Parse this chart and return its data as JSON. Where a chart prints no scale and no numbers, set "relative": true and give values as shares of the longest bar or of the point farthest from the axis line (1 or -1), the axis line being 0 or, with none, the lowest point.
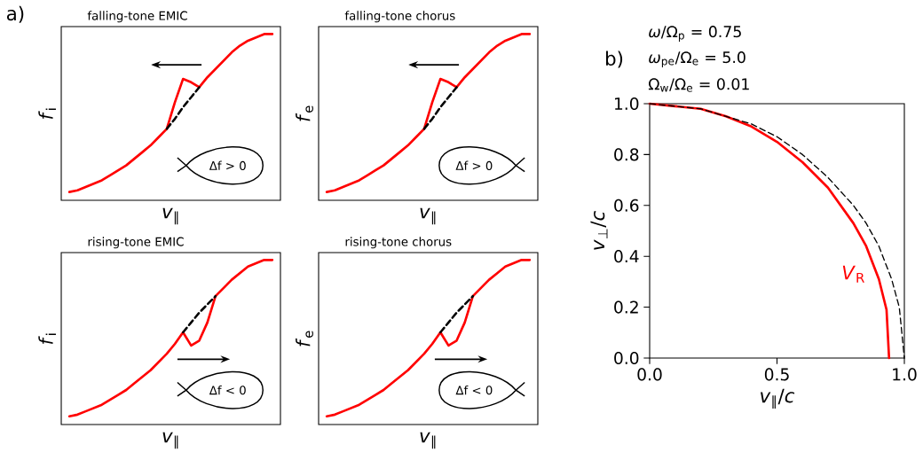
{
  "chart_data": [
    {
      "type": "line",
      "relative": true,
      "title": "falling-tone EMIC",
      "xlabel": "*v*$_{∥}$",
      "ylabel": "*f*$_{i}$",
      "categories": [
        null,
        null,
        null,
        null,
        null,
        null,
        null,
        null,
        null,
        null,
        null,
        null,
        null,
        null,
        null,
        null,
        null,
        null,
        null,
        null,
        null,
        null,
        null,
        null,
        null,
        null
      ],
      "series": [
        {
          "color": "#ff0000",
          "values": [
            0.05,
            0.06,
            0.08,
            0.1,
            0.12,
            0.15,
            0.18,
            0.21,
            0.25,
            0.29,
            0.33,
            0.38,
            0.43,
            0.59,
            0.73,
            0.71,
            0.68,
            0.74,
            0.79,
            0.84,
            0.89,
            0.93,
            0.96,
            0.98,
            1.0,
            1.0
          ]
        },
        {
          "color": "#000000",
          "line_style": "dashed",
          "values": [
            null,
            null,
            null,
            null,
            null,
            null,
            null,
            null,
            null,
            null,
            null,
            null,
            0.43,
            0.49,
            0.56,
            0.62,
            0.68,
            null,
            null,
            null,
            null,
            null,
            null,
            null,
            null,
            null
          ]
        }
      ],
      "annotations": [
        "a)",
        "Δf > 0"
      ]
    },
    {
      "type": "line",
      "relative": true,
      "title": "falling-tone chorus",
      "xlabel": "*v*$_{∥}$",
      "ylabel": "*f*$_{e}$",
      "categories": [
        null,
        null,
        null,
        null,
        null,
        null,
        null,
        null,
        null,
        null,
        null,
        null,
        null,
        null,
        null,
        null,
        null,
        null,
        null,
        null,
        null,
        null,
        null,
        null,
        null,
        null
      ],
      "series": [
        {
          "color": "#ff0000",
          "values": [
            0.05,
            0.06,
            0.08,
            0.1,
            0.12,
            0.15,
            0.18,
            0.21,
            0.25,
            0.29,
            0.33,
            0.38,
            0.43,
            0.59,
            0.73,
            0.71,
            0.68,
            0.74,
            0.79,
            0.84,
            0.89,
            0.93,
            0.96,
            0.98,
            1.0,
            1.0
          ]
        },
        {
          "color": "#000000",
          "line_style": "dashed",
          "values": [
            null,
            null,
            null,
            null,
            null,
            null,
            null,
            null,
            null,
            null,
            null,
            null,
            0.43,
            0.49,
            0.56,
            0.62,
            0.68,
            null,
            null,
            null,
            null,
            null,
            null,
            null,
            null,
            null
          ]
        }
      ],
      "annotations": [
        "Δf > 0"
      ]
    },
    {
      "type": "line",
      "relative": true,
      "title": "rising-tone EMIC",
      "xlabel": "*v*$_{∥}$",
      "ylabel": "*f*$_{i}$",
      "categories": [
        null,
        null,
        null,
        null,
        null,
        null,
        null,
        null,
        null,
        null,
        null,
        null,
        null,
        null,
        null,
        null,
        null,
        null,
        null,
        null,
        null,
        null,
        null,
        null,
        null,
        null
      ],
      "series": [
        {
          "color": "#ff0000",
          "values": [
            0.05,
            0.06,
            0.08,
            0.1,
            0.12,
            0.15,
            0.18,
            0.21,
            0.25,
            0.29,
            0.33,
            0.38,
            0.43,
            0.49,
            0.56,
            0.48,
            0.51,
            0.62,
            0.78,
            0.83,
            0.88,
            0.92,
            0.96,
            0.98,
            1.0,
            1.0
          ]
        },
        {
          "color": "#000000",
          "line_style": "dashed",
          "values": [
            null,
            null,
            null,
            null,
            null,
            null,
            null,
            null,
            null,
            null,
            null,
            null,
            null,
            null,
            0.56,
            0.62,
            0.68,
            0.73,
            0.78,
            null,
            null,
            null,
            null,
            null,
            null,
            null
          ]
        }
      ],
      "annotations": [
        "Δf < 0"
      ]
    },
    {
      "type": "line",
      "relative": true,
      "title": "rising-tone chorus",
      "xlabel": "*v*$_{∥}$",
      "ylabel": "*f*$_{e}$",
      "categories": [
        null,
        null,
        null,
        null,
        null,
        null,
        null,
        null,
        null,
        null,
        null,
        null,
        null,
        null,
        null,
        null,
        null,
        null,
        null,
        null,
        null,
        null,
        null,
        null,
        null,
        null
      ],
      "series": [
        {
          "color": "#ff0000",
          "values": [
            0.05,
            0.06,
            0.08,
            0.1,
            0.12,
            0.15,
            0.18,
            0.21,
            0.25,
            0.29,
            0.33,
            0.38,
            0.43,
            0.49,
            0.56,
            0.48,
            0.51,
            0.62,
            0.78,
            0.83,
            0.88,
            0.92,
            0.96,
            0.98,
            1.0,
            1.0
          ]
        },
        {
          "color": "#000000",
          "line_style": "dashed",
          "values": [
            null,
            null,
            null,
            null,
            null,
            null,
            null,
            null,
            null,
            null,
            null,
            null,
            null,
            null,
            0.56,
            0.62,
            0.68,
            0.73,
            0.78,
            null,
            null,
            null,
            null,
            null,
            null,
            null
          ]
        }
      ],
      "annotations": [
        "Δf < 0"
      ]
    },
    {
      "type": "line",
      "xlabel": "*v*$_{∥}$/*c*",
      "ylabel": "*v*$_{⊥}$/*c*",
      "xlim": [
        0,
        1
      ],
      "ylim": [
        0,
        1
      ],
      "xticks": [
        {
          "value": 0,
          "label": "0.0"
        },
        {
          "value": 0.5,
          "label": "0.5"
        },
        {
          "value": 1,
          "label": "1.0"
        }
      ],
      "yticks": [
        {
          "value": 0,
          "label": "0.0"
        },
        {
          "value": 0.2,
          "label": "0.2"
        },
        {
          "value": 0.4,
          "label": "0.4"
        },
        {
          "value": 0.6,
          "label": "0.6"
        },
        {
          "value": 0.8,
          "label": "0.8"
        },
        {
          "value": 1,
          "label": "1.0"
        }
      ],
      "series": [
        {
          "name": "*V*$_{R}$",
          "color": "#ff0000",
          "x": [
            0,
            0.1,
            0.2,
            0.3,
            0.4,
            0.5,
            0.6,
            0.7,
            0.8,
            0.85,
            0.9,
            0.93,
            0.94
          ],
          "values": [
            1.0,
            0.99,
            0.98,
            0.95,
            0.91,
            0.85,
            0.77,
            0.67,
            0.53,
            0.44,
            0.31,
            0.19,
            0.0
          ]
        },
        {
          "color": "#000000",
          "line_style": "dashed",
          "x": [
            0,
            0.1,
            0.2,
            0.3,
            0.4,
            0.5,
            0.6,
            0.7,
            0.8,
            0.85,
            0.9,
            0.95,
            0.98,
            1.0
          ],
          "values": [
            1.0,
            0.99,
            0.98,
            0.95,
            0.92,
            0.87,
            0.8,
            0.71,
            0.6,
            0.53,
            0.44,
            0.31,
            0.2,
            0.0
          ]
        }
      ],
      "annotations": [
        "b)",
        "*ω*/Ω$_{p}$ = 0.75",
        "*ω*$_{pe}$/Ω$_{e}$ = 5.0",
        "Ω$_{w}$/Ω$_{e}$ = 0.01"
      ]
    }
  ]
}
